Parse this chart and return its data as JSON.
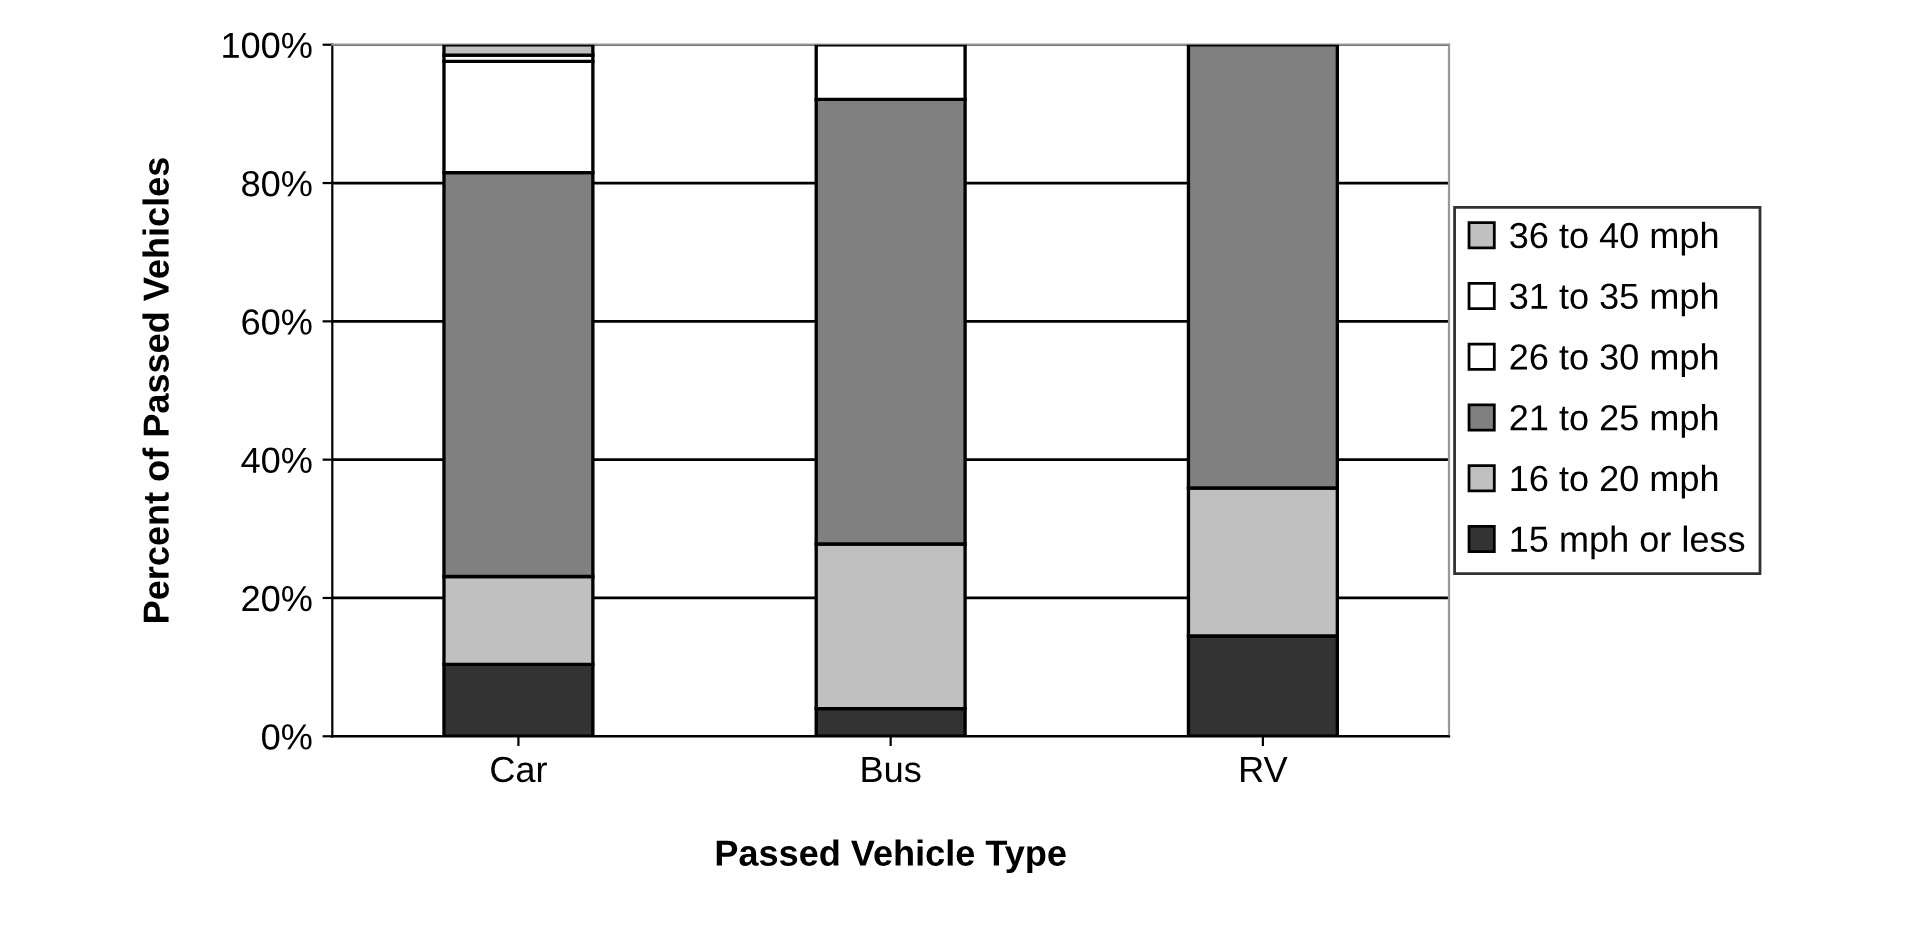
{
  "chart_data": {
    "type": "bar",
    "stacked": true,
    "xlabel": "Passed Vehicle Type",
    "ylabel": "Percent of Passed Vehicles",
    "categories": [
      "Car",
      "Bus",
      "RV"
    ],
    "series": [
      {
        "name": "15 mph or less",
        "color": "#333333",
        "values": [
          10.4,
          4.0,
          14.5
        ]
      },
      {
        "name": "16 to 20 mph",
        "color": "#c0c0c0",
        "values": [
          12.7,
          23.8,
          21.4
        ]
      },
      {
        "name": "21 to 25 mph",
        "color": "#808080",
        "values": [
          58.4,
          64.3,
          64.1
        ]
      },
      {
        "name": "26 to 30 mph",
        "color": "#ffffff",
        "values": [
          16.1,
          7.9,
          null
        ]
      },
      {
        "name": "31 to 35 mph",
        "color": "#ffffff",
        "values": [
          0.9,
          null,
          null
        ]
      },
      {
        "name": "36 to 40 mph",
        "color": "#c0c0c0",
        "values": [
          1.5,
          null,
          null
        ]
      }
    ],
    "ylim": [
      0,
      100
    ],
    "yticks": [
      {
        "value": 0,
        "label": "0%"
      },
      {
        "value": 20,
        "label": "20%"
      },
      {
        "value": 40,
        "label": "40%"
      },
      {
        "value": 60,
        "label": "60%"
      },
      {
        "value": 80,
        "label": "80%"
      },
      {
        "value": 100,
        "label": "100%"
      }
    ],
    "grid": "y",
    "legend": "right"
  }
}
